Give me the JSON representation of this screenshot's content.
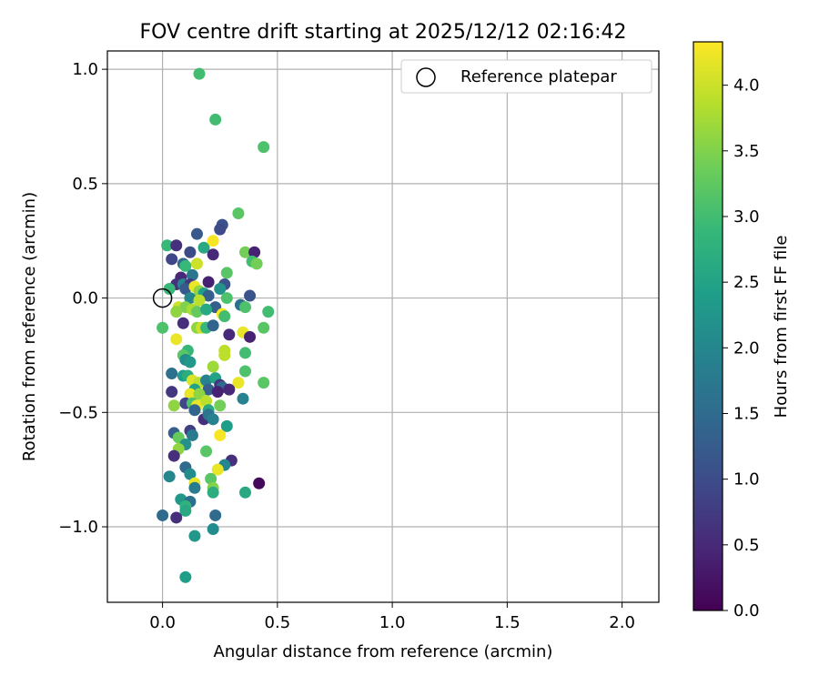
{
  "chart_data": {
    "type": "scatter",
    "title": "FOV centre drift starting at 2025/12/12 02:16:42",
    "xlabel": "Angular distance from reference (arcmin)",
    "ylabel": "Rotation from reference (arcmin)",
    "xlim": [
      -0.24,
      2.16
    ],
    "ylim": [
      -1.33,
      1.08
    ],
    "xticks": [
      {
        "v": 0.0,
        "label": "0.0"
      },
      {
        "v": 0.5,
        "label": "0.5"
      },
      {
        "v": 1.0,
        "label": "1.0"
      },
      {
        "v": 1.5,
        "label": "1.5"
      },
      {
        "v": 2.0,
        "label": "2.0"
      }
    ],
    "yticks": [
      {
        "v": 1.0,
        "label": "1.0"
      },
      {
        "v": 0.5,
        "label": "0.5"
      },
      {
        "v": 0.0,
        "label": "0.0"
      },
      {
        "v": -0.5,
        "label": "−0.5"
      },
      {
        "v": -1.0,
        "label": "−1.0"
      }
    ],
    "grid": true,
    "legend": {
      "position": "top-right",
      "entries": [
        "Reference platepar"
      ]
    },
    "reference_point": {
      "x": 0.0,
      "y": 0.0
    },
    "colorbar": {
      "label": "Hours from first FF file",
      "range": [
        0.0,
        4.33
      ],
      "ticks": [
        {
          "v": 0.0,
          "label": "0.0"
        },
        {
          "v": 0.5,
          "label": "0.5"
        },
        {
          "v": 1.0,
          "label": "1.0"
        },
        {
          "v": 1.5,
          "label": "1.5"
        },
        {
          "v": 2.0,
          "label": "2.0"
        },
        {
          "v": 2.5,
          "label": "2.5"
        },
        {
          "v": 3.0,
          "label": "3.0"
        },
        {
          "v": 3.5,
          "label": "3.5"
        },
        {
          "v": 4.0,
          "label": "4.0"
        }
      ],
      "colormap": "viridis"
    },
    "points": [
      [
        0.16,
        0.98,
        3.0
      ],
      [
        0.23,
        0.78,
        3.0
      ],
      [
        0.44,
        0.66,
        3.1
      ],
      [
        0.33,
        0.37,
        3.2
      ],
      [
        0.26,
        0.32,
        1.1
      ],
      [
        0.25,
        0.3,
        1.0
      ],
      [
        0.02,
        0.23,
        2.9
      ],
      [
        0.06,
        0.23,
        0.6
      ],
      [
        0.15,
        0.28,
        1.2
      ],
      [
        0.12,
        0.2,
        1.0
      ],
      [
        0.18,
        0.22,
        2.6
      ],
      [
        0.22,
        0.19,
        0.5
      ],
      [
        0.22,
        0.25,
        4.3
      ],
      [
        0.36,
        0.2,
        3.4
      ],
      [
        0.4,
        0.2,
        0.4
      ],
      [
        0.39,
        0.16,
        3.0
      ],
      [
        0.41,
        0.15,
        3.4
      ],
      [
        0.04,
        0.17,
        0.9
      ],
      [
        0.09,
        0.15,
        1.5
      ],
      [
        0.1,
        0.14,
        2.9
      ],
      [
        0.15,
        0.15,
        4.0
      ],
      [
        0.28,
        0.11,
        3.2
      ],
      [
        0.13,
        0.1,
        1.7
      ],
      [
        0.08,
        0.09,
        0.5
      ],
      [
        0.06,
        0.06,
        0.6
      ],
      [
        0.09,
        0.06,
        1.9
      ],
      [
        0.12,
        0.06,
        0.7
      ],
      [
        0.2,
        0.07,
        0.4
      ],
      [
        0.27,
        0.06,
        1.1
      ],
      [
        0.03,
        0.04,
        2.9
      ],
      [
        0.1,
        0.04,
        1.2
      ],
      [
        0.14,
        0.05,
        4.2
      ],
      [
        0.16,
        0.03,
        3.6
      ],
      [
        0.18,
        0.02,
        2.4
      ],
      [
        0.2,
        0.01,
        1.3
      ],
      [
        0.25,
        0.04,
        2.2
      ],
      [
        0.28,
        0.0,
        3.1
      ],
      [
        0.38,
        0.01,
        1.1
      ],
      [
        0.12,
        0.0,
        2.0
      ],
      [
        0.16,
        -0.01,
        3.9
      ],
      [
        0.23,
        -0.04,
        1.3
      ],
      [
        0.07,
        -0.04,
        4.0
      ],
      [
        0.1,
        -0.04,
        3.5
      ],
      [
        0.13,
        -0.05,
        3.8
      ],
      [
        0.15,
        -0.06,
        3.3
      ],
      [
        0.19,
        -0.05,
        2.6
      ],
      [
        0.26,
        -0.07,
        4.3
      ],
      [
        0.27,
        -0.08,
        3.0
      ],
      [
        0.34,
        -0.03,
        1.6
      ],
      [
        0.36,
        -0.04,
        3.1
      ],
      [
        0.46,
        -0.06,
        3.0
      ],
      [
        0.06,
        -0.06,
        3.6
      ],
      [
        0.09,
        -0.11,
        0.6
      ],
      [
        0.15,
        -0.13,
        3.6
      ],
      [
        0.17,
        -0.13,
        4.0
      ],
      [
        0.19,
        -0.13,
        2.9
      ],
      [
        0.22,
        -0.12,
        1.4
      ],
      [
        0.44,
        -0.13,
        3.2
      ],
      [
        0.0,
        -0.13,
        3.1
      ],
      [
        0.29,
        -0.16,
        0.5
      ],
      [
        0.35,
        -0.15,
        4.2
      ],
      [
        0.38,
        -0.17,
        0.4
      ],
      [
        0.06,
        -0.18,
        4.2
      ],
      [
        0.27,
        -0.23,
        3.9
      ],
      [
        0.11,
        -0.23,
        2.9
      ],
      [
        0.09,
        -0.25,
        3.2
      ],
      [
        0.27,
        -0.25,
        3.9
      ],
      [
        0.36,
        -0.24,
        3.0
      ],
      [
        0.1,
        -0.27,
        2.1
      ],
      [
        0.12,
        -0.28,
        2.3
      ],
      [
        0.22,
        -0.3,
        3.7
      ],
      [
        0.36,
        -0.32,
        3.1
      ],
      [
        0.04,
        -0.33,
        1.6
      ],
      [
        0.09,
        -0.34,
        2.4
      ],
      [
        0.11,
        -0.34,
        2.7
      ],
      [
        0.13,
        -0.36,
        4.1
      ],
      [
        0.16,
        -0.37,
        3.9
      ],
      [
        0.19,
        -0.36,
        1.9
      ],
      [
        0.23,
        -0.35,
        2.5
      ],
      [
        0.25,
        -0.38,
        0.7
      ],
      [
        0.33,
        -0.37,
        4.2
      ],
      [
        0.44,
        -0.37,
        3.2
      ],
      [
        0.14,
        -0.4,
        2.5
      ],
      [
        0.2,
        -0.4,
        1.3
      ],
      [
        0.26,
        -0.39,
        1.5
      ],
      [
        0.29,
        -0.4,
        0.5
      ],
      [
        0.04,
        -0.41,
        0.7
      ],
      [
        0.12,
        -0.42,
        4.2
      ],
      [
        0.16,
        -0.42,
        3.6
      ],
      [
        0.24,
        -0.41,
        0.4
      ],
      [
        0.35,
        -0.44,
        1.9
      ],
      [
        0.1,
        -0.46,
        0.9
      ],
      [
        0.13,
        -0.46,
        3.1
      ],
      [
        0.15,
        -0.47,
        4.2
      ],
      [
        0.19,
        -0.45,
        3.9
      ],
      [
        0.25,
        -0.47,
        3.4
      ],
      [
        0.05,
        -0.47,
        3.6
      ],
      [
        0.2,
        -0.49,
        2.6
      ],
      [
        0.14,
        -0.49,
        1.4
      ],
      [
        0.18,
        -0.53,
        0.6
      ],
      [
        0.2,
        -0.51,
        1.7
      ],
      [
        0.22,
        -0.53,
        1.9
      ],
      [
        0.28,
        -0.56,
        2.4
      ],
      [
        0.12,
        -0.58,
        0.8
      ],
      [
        0.13,
        -0.6,
        1.8
      ],
      [
        0.05,
        -0.59,
        1.3
      ],
      [
        0.07,
        -0.61,
        3.3
      ],
      [
        0.25,
        -0.6,
        4.3
      ],
      [
        0.1,
        -0.64,
        2.2
      ],
      [
        0.07,
        -0.66,
        3.6
      ],
      [
        0.19,
        -0.67,
        3.2
      ],
      [
        0.05,
        -0.69,
        0.6
      ],
      [
        0.3,
        -0.71,
        0.6
      ],
      [
        0.27,
        -0.73,
        2.0
      ],
      [
        0.24,
        -0.75,
        4.2
      ],
      [
        0.1,
        -0.74,
        1.5
      ],
      [
        0.03,
        -0.78,
        2.0
      ],
      [
        0.12,
        -0.77,
        2.1
      ],
      [
        0.21,
        -0.79,
        3.2
      ],
      [
        0.14,
        -0.81,
        4.2
      ],
      [
        0.42,
        -0.81,
        0.1
      ],
      [
        0.22,
        -0.83,
        3.5
      ],
      [
        0.14,
        -0.83,
        1.8
      ],
      [
        0.22,
        -0.85,
        2.7
      ],
      [
        0.36,
        -0.85,
        2.6
      ],
      [
        0.08,
        -0.88,
        2.3
      ],
      [
        0.12,
        -0.89,
        1.6
      ],
      [
        0.1,
        -0.91,
        2.8
      ],
      [
        0.1,
        -0.93,
        2.6
      ],
      [
        0.0,
        -0.95,
        1.5
      ],
      [
        0.06,
        -0.96,
        0.6
      ],
      [
        0.23,
        -0.95,
        1.5
      ],
      [
        0.22,
        -1.01,
        2.1
      ],
      [
        0.14,
        -1.04,
        2.3
      ],
      [
        0.1,
        -1.22,
        2.4
      ]
    ]
  }
}
